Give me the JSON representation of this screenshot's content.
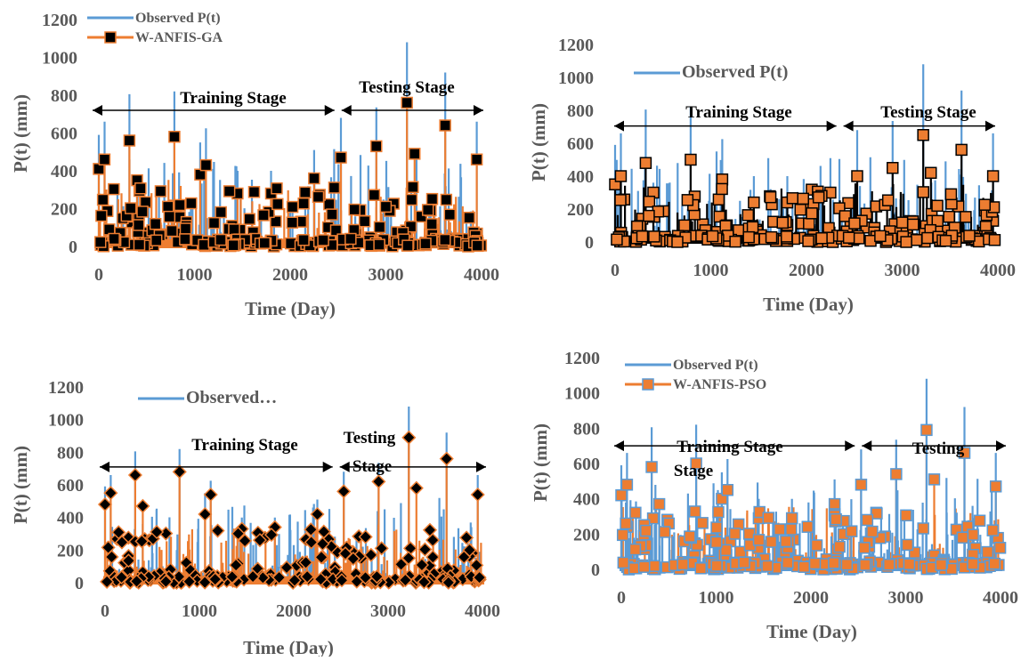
{
  "charts": [
    {
      "series_colors": {
        "observed": "#5B9BD5",
        "model": "#ED7D31",
        "marker_fill": "#000000",
        "marker_stroke": "#ED7D31",
        "marker_shape": "square",
        "draw_order": "observed-first"
      },
      "legend": [
        "Observed P(t)",
        "W-ANFIS-GA"
      ],
      "ylabel": "P(t) (mm)",
      "xlabel": "Time (Day)",
      "annotations": [
        "Training Stage",
        "Testing  Stage"
      ]
    },
    {
      "series_colors": {
        "observed": "#5B9BD5",
        "model": "#000000",
        "marker_fill": "#ED7D31",
        "marker_stroke": "#000000",
        "marker_shape": "square",
        "draw_order": "observed-first"
      },
      "legend": [
        "Observed P(t)"
      ],
      "ylabel": "P(t) (mm)",
      "xlabel": "Time (Day)",
      "annotations": [
        "Training Stage",
        "Testing  Stage"
      ]
    },
    {
      "series_colors": {
        "observed": "#5B9BD5",
        "model": "#ED7D31",
        "marker_fill": "#000000",
        "marker_stroke": "#ED7D31",
        "marker_shape": "diamond",
        "draw_order": "observed-first"
      },
      "legend": [
        "Observed…"
      ],
      "ylabel": "P(t) (mm)",
      "xlabel": "Time (Day)",
      "annotations": [
        "Training Stage",
        "Testing",
        "Stage"
      ]
    },
    {
      "series_colors": {
        "observed": "#5B9BD5",
        "model": "#ED7D31",
        "marker_fill": "#ED7D31",
        "marker_stroke": "#5B9BD5",
        "marker_shape": "square",
        "draw_order": "model-first"
      },
      "legend": [
        "Observed P(t)",
        "W-ANFIS-PSO"
      ],
      "ylabel": "P(t) (mm)",
      "xlabel": "Time (Day)",
      "annotations": [
        "Training Stage",
        "Stage",
        "Testing"
      ]
    }
  ],
  "chart_data": [
    {
      "type": "line",
      "xlim": [
        0,
        4000
      ],
      "ylim": [
        0,
        1200
      ],
      "xticks": [
        0,
        1000,
        2000,
        3000,
        4000
      ],
      "yticks": [
        0,
        200,
        400,
        600,
        800,
        1000,
        1200
      ],
      "stage_split_x": 2500,
      "arrow_y": 720,
      "series": [
        {
          "name": "Observed P(t)",
          "peaks": [
            [
              0,
              590
            ],
            [
              60,
              660
            ],
            [
              320,
              805
            ],
            [
              400,
              360
            ],
            [
              760,
              200
            ],
            [
              790,
              820
            ],
            [
              980,
              250
            ],
            [
              1060,
              550
            ],
            [
              1120,
              625
            ],
            [
              1450,
              400
            ],
            [
              1600,
              290
            ],
            [
              1800,
              400
            ],
            [
              2000,
              230
            ],
            [
              2250,
              510
            ],
            [
              2530,
              680
            ],
            [
              2900,
              735
            ],
            [
              3220,
              1080
            ],
            [
              3620,
              920
            ],
            [
              3950,
              660
            ]
          ]
        },
        {
          "name": "W-ANFIS-GA",
          "peaks": [
            [
              0,
              410
            ],
            [
              60,
              460
            ],
            [
              320,
              560
            ],
            [
              400,
              350
            ],
            [
              790,
              580
            ],
            [
              1060,
              380
            ],
            [
              1120,
              430
            ],
            [
              1450,
              280
            ],
            [
              1800,
              280
            ],
            [
              2250,
              360
            ],
            [
              2530,
              470
            ],
            [
              2900,
              530
            ],
            [
              3220,
              760
            ],
            [
              3300,
              490
            ],
            [
              3620,
              640
            ],
            [
              3950,
              460
            ]
          ]
        }
      ]
    },
    {
      "type": "line",
      "xlim": [
        0,
        4000
      ],
      "ylim": [
        0,
        1200
      ],
      "xticks": [
        0,
        1000,
        2000,
        3000,
        4000
      ],
      "yticks": [
        0,
        200,
        400,
        600,
        800,
        1000,
        1200
      ],
      "stage_split_x": 2350,
      "arrow_y": 705,
      "series": [
        {
          "name": "Observed P(t)",
          "peaks": [
            [
              0,
              590
            ],
            [
              60,
              660
            ],
            [
              320,
              805
            ],
            [
              400,
              360
            ],
            [
              760,
              200
            ],
            [
              790,
              820
            ],
            [
              980,
              250
            ],
            [
              1060,
              550
            ],
            [
              1120,
              625
            ],
            [
              1450,
              400
            ],
            [
              1600,
              290
            ],
            [
              1800,
              400
            ],
            [
              2000,
              230
            ],
            [
              2250,
              510
            ],
            [
              2530,
              680
            ],
            [
              2900,
              735
            ],
            [
              3220,
              1080
            ],
            [
              3620,
              920
            ],
            [
              3950,
              660
            ]
          ]
        },
        {
          "name": "",
          "peaks": [
            [
              0,
              350
            ],
            [
              60,
              400
            ],
            [
              320,
              480
            ],
            [
              400,
              300
            ],
            [
              790,
              500
            ],
            [
              1120,
              380
            ],
            [
              1450,
              240
            ],
            [
              1800,
              240
            ],
            [
              2250,
              300
            ],
            [
              2530,
              400
            ],
            [
              2900,
              450
            ],
            [
              3220,
              650
            ],
            [
              3300,
              420
            ],
            [
              3620,
              560
            ],
            [
              3950,
              400
            ]
          ]
        }
      ]
    },
    {
      "type": "line",
      "xlim": [
        0,
        4000
      ],
      "ylim": [
        0,
        1200
      ],
      "xticks": [
        0,
        1000,
        2000,
        3000,
        4000
      ],
      "yticks": [
        0,
        200,
        400,
        600,
        800,
        1000,
        1200
      ],
      "stage_split_x": 2450,
      "arrow_y": 710,
      "series": [
        {
          "name": "Observed…",
          "peaks": [
            [
              0,
              590
            ],
            [
              60,
              660
            ],
            [
              320,
              805
            ],
            [
              400,
              360
            ],
            [
              760,
              200
            ],
            [
              790,
              820
            ],
            [
              980,
              250
            ],
            [
              1060,
              550
            ],
            [
              1120,
              625
            ],
            [
              1450,
              400
            ],
            [
              1600,
              290
            ],
            [
              1800,
              400
            ],
            [
              2000,
              230
            ],
            [
              2250,
              510
            ],
            [
              2530,
              680
            ],
            [
              2900,
              735
            ],
            [
              3220,
              1080
            ],
            [
              3620,
              920
            ],
            [
              3950,
              660
            ]
          ]
        },
        {
          "name": "",
          "peaks": [
            [
              0,
              480
            ],
            [
              60,
              550
            ],
            [
              320,
              660
            ],
            [
              400,
              470
            ],
            [
              790,
              680
            ],
            [
              1060,
              420
            ],
            [
              1120,
              540
            ],
            [
              1450,
              330
            ],
            [
              1800,
              340
            ],
            [
              2250,
              420
            ],
            [
              2530,
              560
            ],
            [
              2900,
              620
            ],
            [
              3220,
              890
            ],
            [
              3300,
              580
            ],
            [
              3620,
              760
            ],
            [
              3950,
              540
            ]
          ]
        }
      ]
    },
    {
      "type": "line",
      "xlim": [
        0,
        4000
      ],
      "ylim": [
        0,
        1200
      ],
      "xticks": [
        0,
        1000,
        2000,
        3000,
        4000
      ],
      "yticks": [
        0,
        200,
        400,
        600,
        800,
        1000,
        1200
      ],
      "stage_split_x": 2500,
      "arrow_y": 700,
      "series": [
        {
          "name": "Observed P(t)",
          "peaks": [
            [
              0,
              590
            ],
            [
              60,
              660
            ],
            [
              320,
              805
            ],
            [
              400,
              360
            ],
            [
              760,
              200
            ],
            [
              790,
              820
            ],
            [
              980,
              250
            ],
            [
              1060,
              550
            ],
            [
              1120,
              625
            ],
            [
              1450,
              400
            ],
            [
              1600,
              290
            ],
            [
              1800,
              400
            ],
            [
              2000,
              230
            ],
            [
              2250,
              510
            ],
            [
              2530,
              680
            ],
            [
              2900,
              735
            ],
            [
              3220,
              1080
            ],
            [
              3620,
              920
            ],
            [
              3950,
              660
            ]
          ]
        },
        {
          "name": "W-ANFIS-PSO",
          "peaks": [
            [
              0,
              420
            ],
            [
              60,
              480
            ],
            [
              320,
              580
            ],
            [
              400,
              370
            ],
            [
              790,
              600
            ],
            [
              1060,
              400
            ],
            [
              1120,
              450
            ],
            [
              1450,
              290
            ],
            [
              1800,
              290
            ],
            [
              2250,
              370
            ],
            [
              2530,
              480
            ],
            [
              2900,
              540
            ],
            [
              3220,
              790
            ],
            [
              3300,
              510
            ],
            [
              3620,
              660
            ],
            [
              3950,
              470
            ]
          ]
        }
      ]
    }
  ]
}
